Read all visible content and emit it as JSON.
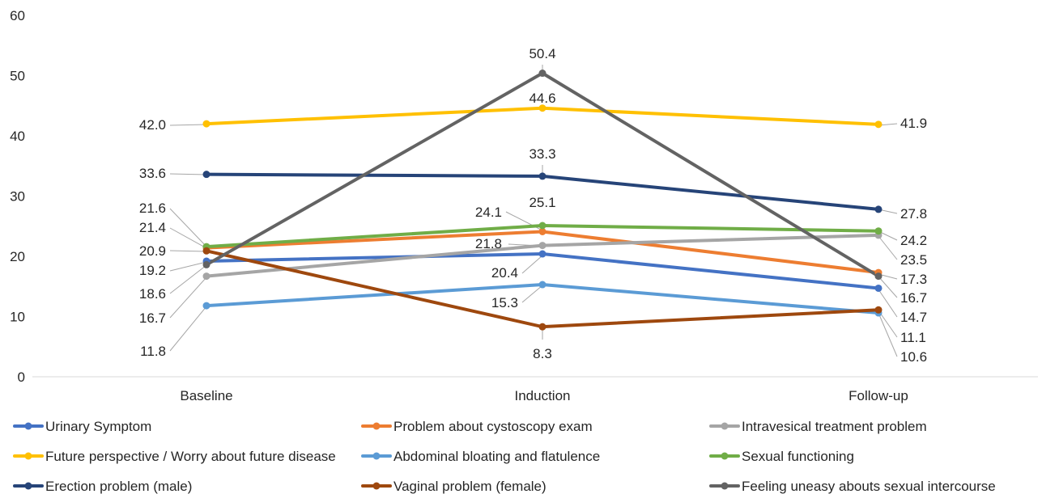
{
  "chart_data": {
    "type": "line",
    "categories": [
      "Baseline",
      "Induction",
      "Follow-up"
    ],
    "ylim": [
      0,
      60
    ],
    "yticks": [
      0,
      10,
      20,
      30,
      40,
      50,
      60
    ],
    "grid": false,
    "legend_position": "bottom",
    "series": [
      {
        "name": "Urinary Symptom",
        "color": "#4472C4",
        "values": [
          19.2,
          20.4,
          14.7
        ],
        "labels": [
          "19.2",
          "20.4",
          "14.7"
        ]
      },
      {
        "name": "Problem about cystoscopy exam",
        "color": "#ED7D31",
        "values": [
          21.4,
          24.1,
          17.3
        ],
        "labels": [
          "21.4",
          "24.1",
          "17.3"
        ]
      },
      {
        "name": "Intravesical treatment problem",
        "color": "#A5A5A5",
        "values": [
          16.7,
          21.8,
          23.5
        ],
        "labels": [
          "16.7",
          "21.8",
          "23.5"
        ]
      },
      {
        "name": "Future perspective / Worry about future disease",
        "color": "#FFC000",
        "values": [
          42.0,
          44.6,
          41.9
        ],
        "labels": [
          "42.0",
          "44.6",
          "41.9"
        ]
      },
      {
        "name": "Abdominal bloating and flatulence",
        "color": "#5B9BD5",
        "values": [
          11.8,
          15.3,
          10.6
        ],
        "labels": [
          "11.8",
          "15.3",
          "10.6"
        ]
      },
      {
        "name": "Sexual functioning",
        "color": "#70AD47",
        "values": [
          21.6,
          25.1,
          24.2
        ],
        "labels": [
          "21.6",
          "25.1",
          "24.2"
        ]
      },
      {
        "name": "Erection problem (male)",
        "color": "#264478",
        "values": [
          33.6,
          33.3,
          27.8
        ],
        "labels": [
          "33.6",
          "33.3",
          "27.8"
        ]
      },
      {
        "name": "Vaginal problem (female)",
        "color": "#9E480E",
        "values": [
          20.9,
          8.3,
          11.1
        ],
        "labels": [
          "20.9",
          "8.3",
          "11.1"
        ]
      },
      {
        "name": "Feeling uneasy abouts sexual intercourse",
        "color": "#636363",
        "values": [
          18.6,
          50.4,
          16.7
        ],
        "labels": [
          "18.6",
          "50.4",
          "16.7"
        ]
      }
    ]
  }
}
